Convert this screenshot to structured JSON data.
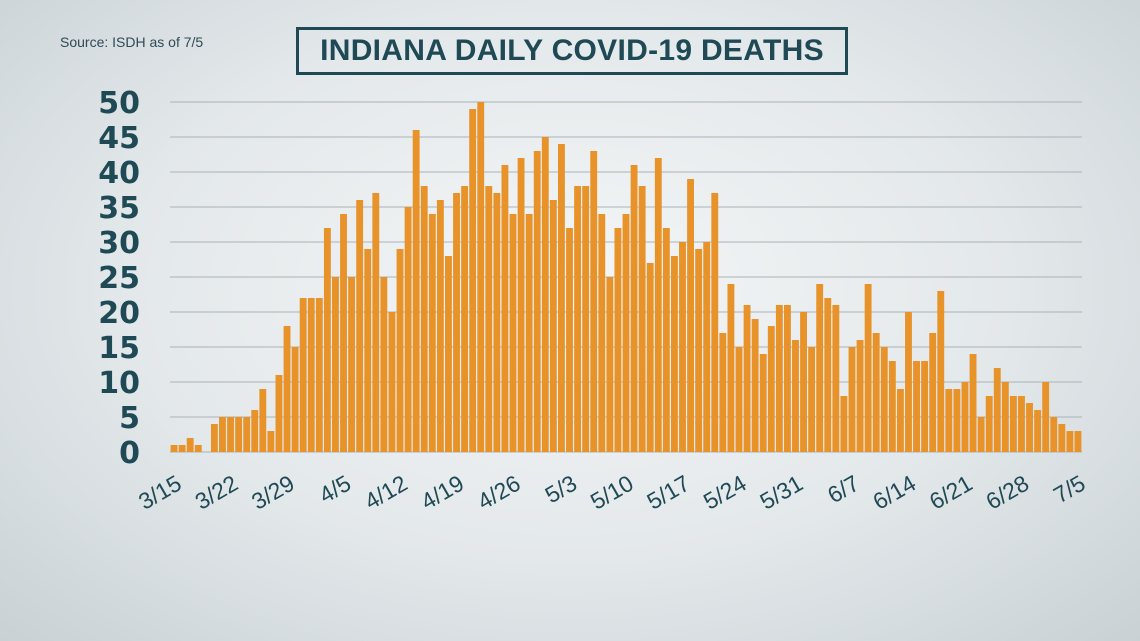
{
  "source": "Source: ISDH as of 7/5",
  "title": "INDIANA DAILY COVID-19 DEATHS",
  "colors": {
    "bar": "#e8922a",
    "text": "#1f4a55",
    "grid": "#a9b3b8"
  },
  "chart_data": {
    "type": "bar",
    "title": "INDIANA DAILY COVID-19 DEATHS",
    "xlabel": "",
    "ylabel": "",
    "ylim": [
      0,
      50
    ],
    "y_ticks": [
      "0",
      "5",
      "10",
      "15",
      "20",
      "25",
      "30",
      "35",
      "40",
      "45",
      "50"
    ],
    "x_start_label": "3/15",
    "x_tick_labels": [
      "3/15",
      "3/22",
      "3/29",
      "4/5",
      "4/12",
      "4/19",
      "4/26",
      "5/3",
      "5/10",
      "5/17",
      "5/24",
      "5/31",
      "6/7",
      "6/14",
      "6/21",
      "6/28",
      "7/5"
    ],
    "grid": true,
    "legend": "none",
    "values": [
      1,
      1,
      2,
      1,
      0,
      4,
      5,
      5,
      5,
      5,
      6,
      9,
      3,
      11,
      18,
      15,
      22,
      22,
      22,
      32,
      25,
      34,
      25,
      36,
      29,
      37,
      25,
      20,
      29,
      35,
      46,
      38,
      34,
      36,
      28,
      37,
      38,
      49,
      50,
      38,
      37,
      41,
      34,
      42,
      34,
      43,
      45,
      36,
      44,
      32,
      38,
      38,
      43,
      34,
      25,
      32,
      34,
      41,
      38,
      27,
      42,
      32,
      28,
      30,
      39,
      29,
      30,
      37,
      17,
      24,
      15,
      21,
      19,
      14,
      18,
      21,
      21,
      16,
      20,
      15,
      24,
      22,
      21,
      8,
      15,
      16,
      24,
      17,
      15,
      13,
      9,
      20,
      13,
      13,
      17,
      23,
      9,
      9,
      10,
      14,
      5,
      8,
      12,
      10,
      8,
      8,
      7,
      6,
      10,
      5,
      4,
      3,
      3
    ]
  }
}
